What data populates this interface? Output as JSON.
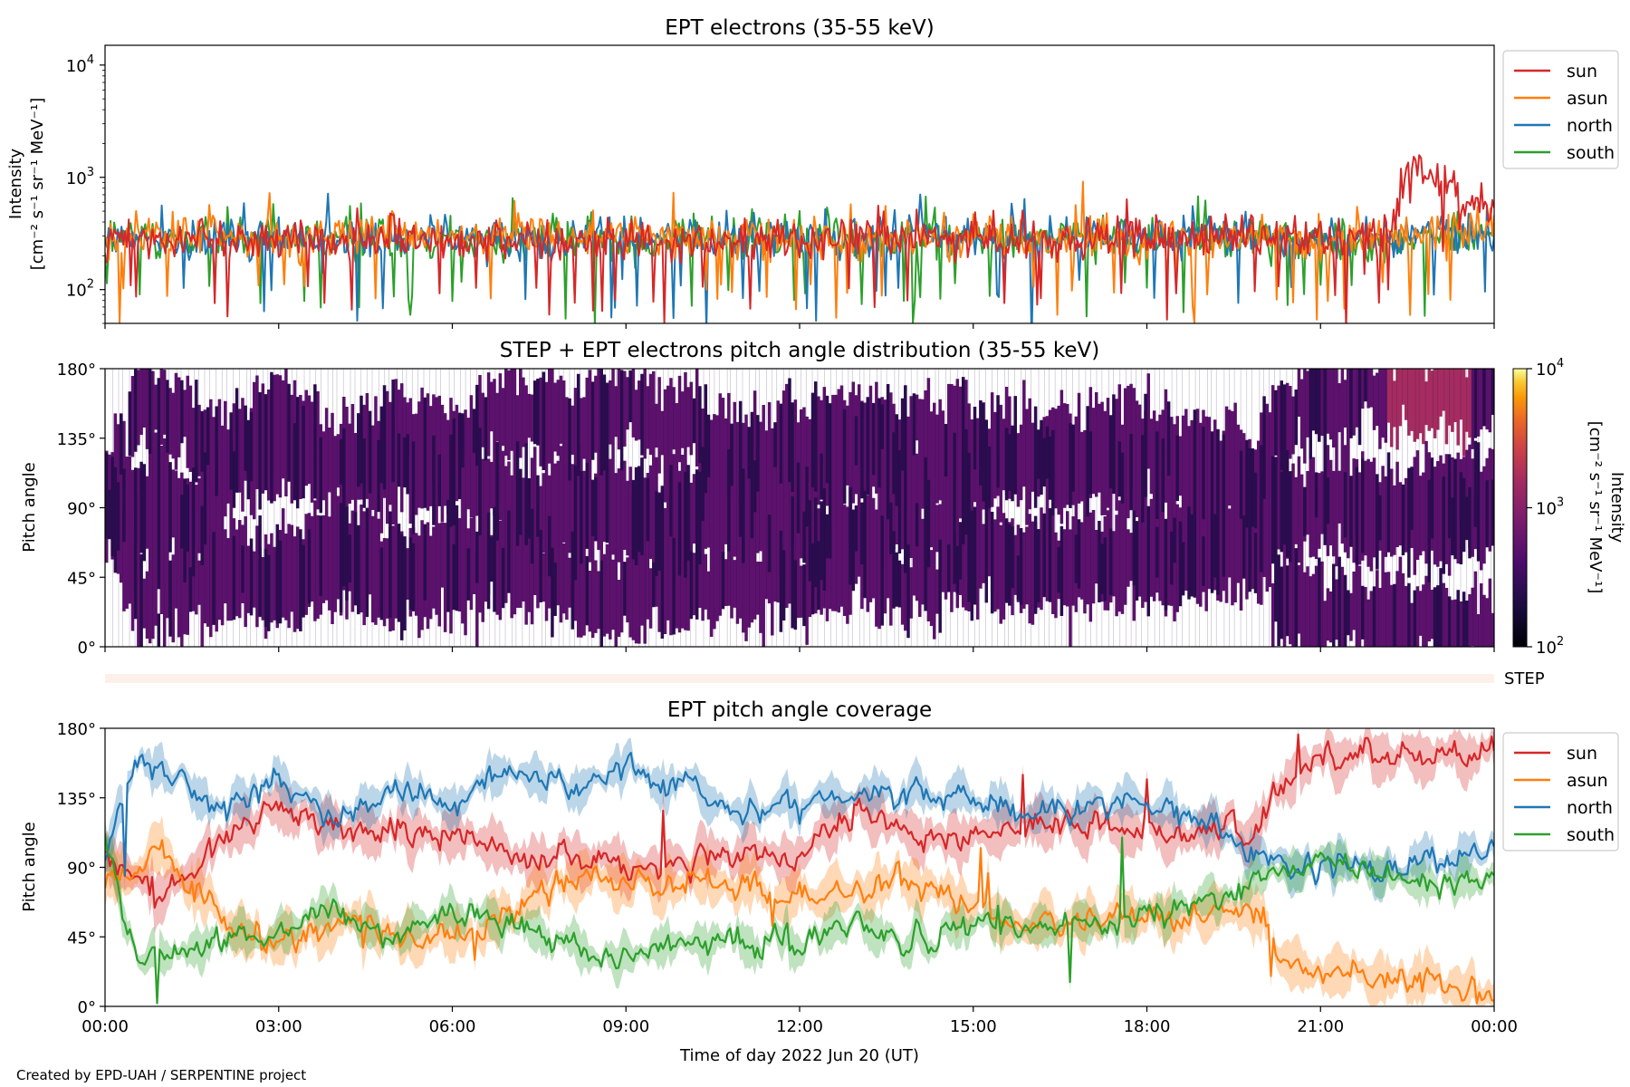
{
  "figure": {
    "credit": "Created by EPD-UAH / SERPENTINE project",
    "xlabel": "Time of day 2022 Jun 20 (UT)",
    "xticks": [
      "00:00",
      "03:00",
      "06:00",
      "09:00",
      "12:00",
      "15:00",
      "18:00",
      "21:00",
      "00:00"
    ]
  },
  "chart_data": [
    {
      "type": "line",
      "title": "EPT electrons (35-55 keV)",
      "ylabel_line1": "Intensity",
      "ylabel_line2": "[cm⁻² s⁻¹ sr⁻¹ MeV⁻¹]",
      "yscale": "log",
      "ylim": [
        50,
        15000
      ],
      "xlim_hours": [
        0,
        24
      ],
      "yticks": [
        {
          "value": 100,
          "base": "10",
          "exp": "2"
        },
        {
          "value": 1000,
          "base": "10",
          "exp": "3"
        },
        {
          "value": 10000,
          "base": "10",
          "exp": "4"
        }
      ],
      "legend_position": "outside-right",
      "series": [
        {
          "name": "sun",
          "color": "#d62728",
          "hours": [
            0,
            2,
            4,
            6,
            8,
            10,
            12,
            14,
            16,
            18,
            20,
            22.3,
            22.6,
            23,
            23.5,
            24
          ],
          "values": [
            270,
            270,
            280,
            275,
            275,
            275,
            280,
            280,
            280,
            280,
            285,
            330,
            1400,
            1000,
            620,
            600
          ]
        },
        {
          "name": "asun",
          "color": "#ff7f0e",
          "hours": [
            0,
            4,
            8,
            12,
            16,
            20,
            22,
            24
          ],
          "values": [
            300,
            300,
            290,
            300,
            290,
            290,
            270,
            360
          ]
        },
        {
          "name": "north",
          "color": "#1f77b4",
          "hours": [
            0,
            4,
            8,
            12,
            16,
            20,
            22,
            24
          ],
          "values": [
            290,
            295,
            290,
            300,
            295,
            290,
            270,
            330
          ]
        },
        {
          "name": "south",
          "color": "#2ca02c",
          "hours": [
            0,
            4,
            8,
            12,
            16,
            20,
            22,
            24
          ],
          "values": [
            280,
            285,
            280,
            285,
            285,
            280,
            260,
            300
          ]
        }
      ]
    },
    {
      "type": "heatmap",
      "title": "STEP + EPT electrons pitch angle distribution (35-55 keV)",
      "ylabel": "Pitch angle",
      "yticks": [
        "0°",
        "45°",
        "90°",
        "135°",
        "180°"
      ],
      "ylim": [
        0,
        180
      ],
      "xlim_hours": [
        0,
        24
      ],
      "colorbar": {
        "label_line1": "Intensity",
        "label_line2": "[cm⁻² s⁻¹ sr⁻¹ MeV⁻¹]",
        "scale": "log",
        "range": [
          100,
          10000
        ],
        "ticks": [
          {
            "value": 100,
            "base": "10",
            "exp": "2"
          },
          {
            "value": 1000,
            "base": "10",
            "exp": "3"
          },
          {
            "value": 10000,
            "base": "10",
            "exp": "4"
          }
        ],
        "colormap": "inferno"
      },
      "step_label": "STEP"
    },
    {
      "type": "line",
      "title": "EPT pitch angle coverage",
      "ylabel": "Pitch angle",
      "yticks": [
        "0°",
        "45°",
        "90°",
        "135°",
        "180°"
      ],
      "ylim": [
        0,
        180
      ],
      "xlim_hours": [
        0,
        24
      ],
      "legend_position": "outside-right",
      "series": [
        {
          "name": "sun",
          "color": "#d62728",
          "hours": [
            0,
            1,
            2,
            3,
            4,
            6,
            8,
            9,
            10,
            12,
            13,
            14,
            15,
            16,
            18,
            19,
            19.8,
            20.5,
            21,
            22,
            23,
            24
          ],
          "values": [
            95,
            70,
            110,
            130,
            115,
            110,
            95,
            90,
            95,
            95,
            125,
            110,
            110,
            120,
            115,
            115,
            110,
            150,
            160,
            165,
            162,
            165
          ]
        },
        {
          "name": "asun",
          "color": "#ff7f0e",
          "hours": [
            0,
            1,
            2,
            3,
            4,
            6,
            8,
            9,
            10,
            12,
            14,
            15,
            16,
            18,
            19,
            19.8,
            20.5,
            21,
            22,
            23,
            24
          ],
          "values": [
            80,
            100,
            55,
            40,
            55,
            40,
            85,
            80,
            80,
            70,
            80,
            65,
            50,
            55,
            60,
            65,
            30,
            20,
            20,
            15,
            10
          ]
        },
        {
          "name": "north",
          "color": "#1f77b4",
          "hours": [
            0,
            0.5,
            1,
            2,
            3,
            4,
            5,
            6,
            7,
            8,
            9,
            10,
            11,
            12,
            13,
            14,
            15,
            16,
            17,
            18,
            19,
            19.8,
            20.5,
            21,
            22,
            23,
            24
          ],
          "values": [
            90,
            160,
            150,
            125,
            150,
            120,
            145,
            125,
            160,
            140,
            155,
            140,
            130,
            130,
            140,
            140,
            135,
            125,
            130,
            130,
            125,
            100,
            90,
            95,
            90,
            95,
            100
          ]
        },
        {
          "name": "south",
          "color": "#2ca02c",
          "hours": [
            0,
            0.5,
            1,
            2,
            3,
            4,
            5,
            6,
            7,
            8,
            9,
            10,
            11,
            12,
            13,
            14,
            15,
            16,
            17,
            18,
            19,
            19.8,
            20.5,
            21,
            22,
            23,
            24
          ],
          "values": [
            110,
            30,
            40,
            40,
            50,
            60,
            45,
            60,
            55,
            40,
            30,
            45,
            45,
            40,
            55,
            40,
            50,
            50,
            55,
            60,
            70,
            80,
            90,
            90,
            85,
            80,
            80
          ]
        }
      ]
    }
  ]
}
